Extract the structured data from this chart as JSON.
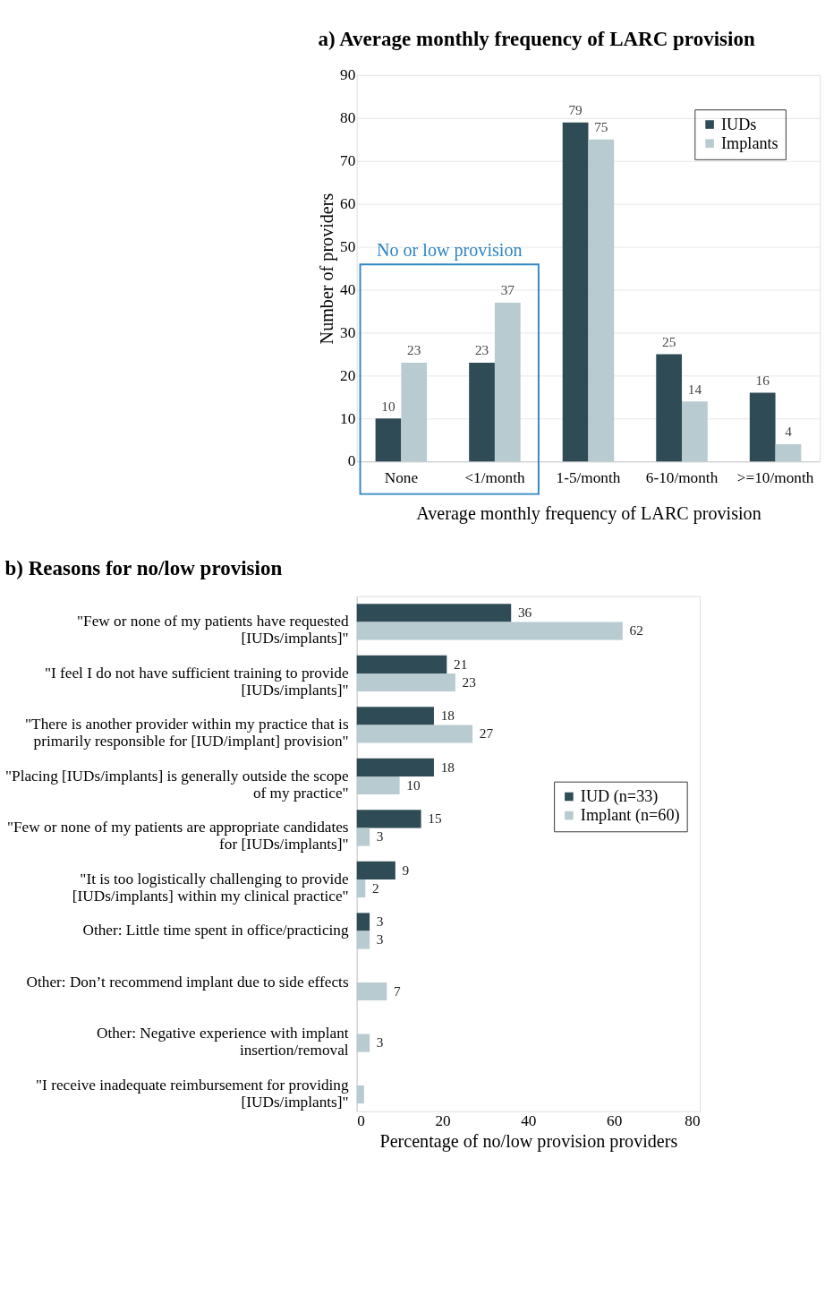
{
  "chart_data": [
    {
      "type": "bar",
      "title": "a) Average monthly frequency of LARC provision",
      "xlabel": "Average monthly frequency of LARC provision",
      "ylabel": "Number of providers",
      "categories": [
        "None",
        "<1/month",
        "1-5/month",
        "6-10/month",
        ">=10/month"
      ],
      "series": [
        {
          "name": "IUDs",
          "color": "#2f4b55",
          "values": [
            10,
            23,
            79,
            25,
            16
          ]
        },
        {
          "name": "Implants",
          "color": "#b8cbd0",
          "values": [
            23,
            37,
            75,
            14,
            4
          ]
        }
      ],
      "ylim": [
        0,
        90
      ],
      "yticks": [
        0,
        10,
        20,
        30,
        40,
        50,
        60,
        70,
        80,
        90
      ],
      "grid": "y",
      "legend": "top right",
      "data_labels": true,
      "annotations": [
        "No or low provision"
      ]
    },
    {
      "type": "bar",
      "orientation": "horizontal",
      "title": "b) Reasons for no/low provision",
      "xlabel": "Percentage of no/low provision providers",
      "categories": [
        "\"Few or none of my patients have requested\n[IUDs/implants]\"",
        "\"I feel I do not have sufficient training to provide\n[IUDs/implants]\"",
        "\"There is another provider within my practice that is\nprimarily responsible for [IUD/implant] provision\"",
        "\"Placing [IUDs/implants] is generally outside the scope\nof my practice\"",
        "\"Few or none of my patients are appropriate candidates\nfor [IUDs/implants]\"",
        "\"It is too logistically challenging to provide\n[IUDs/implants] within my clinical practice\"",
        "Other: Little time spent in office/practicing",
        "Other: Don’t recommend implant due to side effects",
        "Other: Negative experience with implant\ninsertion/removal",
        "\"I receive inadequate reimbursement for providing\n[IUDs/implants]\""
      ],
      "series": [
        {
          "name": "IUD (n=33)",
          "color": "#2f4b55",
          "values": [
            36,
            21,
            18,
            18,
            15,
            9,
            3,
            null,
            null,
            null
          ],
          "value_labels": [
            "36",
            "21",
            "18",
            "18",
            "15",
            "9",
            "3",
            null,
            null,
            null
          ]
        },
        {
          "name": "Implant (n=60)",
          "color": "#b8cbd0",
          "values": [
            62,
            23,
            27,
            10,
            3,
            2,
            3,
            7,
            3,
            1.7
          ],
          "value_labels": [
            "62",
            "23",
            "27",
            "10",
            "3",
            "2",
            "3",
            "7",
            "3",
            null
          ]
        }
      ],
      "xlim": [
        0,
        80
      ],
      "xticks": [
        0,
        20,
        40,
        60,
        80
      ],
      "legend": "right"
    }
  ]
}
